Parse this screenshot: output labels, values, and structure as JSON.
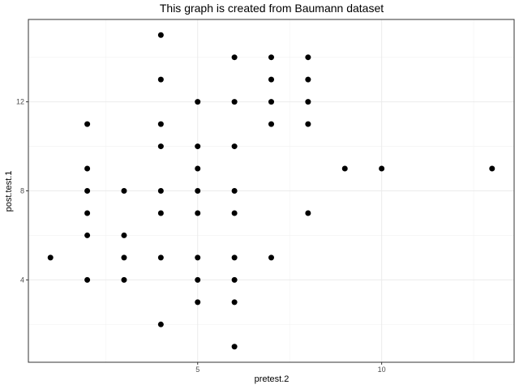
{
  "chart_data": {
    "type": "scatter",
    "title": "This graph is created from Baumann dataset",
    "xlabel": "pretest.2",
    "ylabel": "post.test.1",
    "xlim": [
      0.4,
      13.6
    ],
    "ylim": [
      0.3,
      15.7
    ],
    "xticks": [
      5,
      10
    ],
    "yticks": [
      4,
      8,
      12
    ],
    "grid": true,
    "point_color": "#000000",
    "points": [
      {
        "x": 1,
        "y": 5
      },
      {
        "x": 2,
        "y": 4
      },
      {
        "x": 2,
        "y": 6
      },
      {
        "x": 2,
        "y": 7
      },
      {
        "x": 2,
        "y": 8
      },
      {
        "x": 2,
        "y": 9
      },
      {
        "x": 2,
        "y": 11
      },
      {
        "x": 3,
        "y": 4
      },
      {
        "x": 3,
        "y": 5
      },
      {
        "x": 3,
        "y": 6
      },
      {
        "x": 3,
        "y": 8
      },
      {
        "x": 4,
        "y": 2
      },
      {
        "x": 4,
        "y": 5
      },
      {
        "x": 4,
        "y": 7
      },
      {
        "x": 4,
        "y": 8
      },
      {
        "x": 4,
        "y": 10
      },
      {
        "x": 4,
        "y": 11
      },
      {
        "x": 4,
        "y": 13
      },
      {
        "x": 4,
        "y": 15
      },
      {
        "x": 5,
        "y": 3
      },
      {
        "x": 5,
        "y": 4
      },
      {
        "x": 5,
        "y": 5
      },
      {
        "x": 5,
        "y": 7
      },
      {
        "x": 5,
        "y": 8
      },
      {
        "x": 5,
        "y": 9
      },
      {
        "x": 5,
        "y": 10
      },
      {
        "x": 5,
        "y": 12
      },
      {
        "x": 6,
        "y": 1
      },
      {
        "x": 6,
        "y": 3
      },
      {
        "x": 6,
        "y": 4
      },
      {
        "x": 6,
        "y": 5
      },
      {
        "x": 6,
        "y": 7
      },
      {
        "x": 6,
        "y": 8
      },
      {
        "x": 6,
        "y": 10
      },
      {
        "x": 6,
        "y": 12
      },
      {
        "x": 6,
        "y": 14
      },
      {
        "x": 7,
        "y": 5
      },
      {
        "x": 7,
        "y": 11
      },
      {
        "x": 7,
        "y": 12
      },
      {
        "x": 7,
        "y": 13
      },
      {
        "x": 7,
        "y": 14
      },
      {
        "x": 8,
        "y": 7
      },
      {
        "x": 8,
        "y": 11
      },
      {
        "x": 8,
        "y": 12
      },
      {
        "x": 8,
        "y": 13
      },
      {
        "x": 8,
        "y": 14
      },
      {
        "x": 9,
        "y": 9
      },
      {
        "x": 10,
        "y": 9
      },
      {
        "x": 13,
        "y": 9
      }
    ]
  }
}
